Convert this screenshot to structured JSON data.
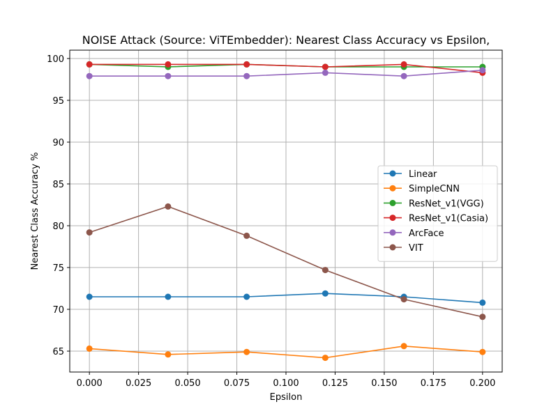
{
  "chart_data": {
    "type": "line",
    "title": "NOISE Attack (Source: ViTEmbedder): Nearest Class Accuracy vs Epsilon,",
    "xlabel": "Epsilon",
    "ylabel": "Nearest Class Accuracy %",
    "x": [
      0.0,
      0.04,
      0.08,
      0.12,
      0.16,
      0.2
    ],
    "xlim": [
      -0.01,
      0.21
    ],
    "ylim": [
      62.5,
      101.0
    ],
    "xticks": [
      0.0,
      0.025,
      0.05,
      0.075,
      0.1,
      0.125,
      0.15,
      0.175,
      0.2
    ],
    "xtick_labels": [
      "0.000",
      "0.025",
      "0.050",
      "0.075",
      "0.100",
      "0.125",
      "0.150",
      "0.175",
      "0.200"
    ],
    "yticks": [
      65,
      70,
      75,
      80,
      85,
      90,
      95,
      100
    ],
    "ytick_labels": [
      "65",
      "70",
      "75",
      "80",
      "85",
      "90",
      "95",
      "100"
    ],
    "grid": true,
    "legend_position": "center-right",
    "series": [
      {
        "name": "Linear",
        "color": "#1f77b4",
        "values": [
          71.5,
          71.5,
          71.5,
          71.9,
          71.5,
          70.8
        ]
      },
      {
        "name": "SimpleCNN",
        "color": "#ff7f0e",
        "values": [
          65.3,
          64.6,
          64.9,
          64.2,
          65.6,
          64.9
        ]
      },
      {
        "name": "ResNet_v1(VGG)",
        "color": "#2ca02c",
        "values": [
          99.3,
          99.0,
          99.3,
          99.0,
          99.0,
          99.0
        ]
      },
      {
        "name": "ResNet_v1(Casia)",
        "color": "#d62728",
        "values": [
          99.3,
          99.3,
          99.3,
          99.0,
          99.3,
          98.3
        ]
      },
      {
        "name": "ArcFace",
        "color": "#9467bd",
        "values": [
          97.9,
          97.9,
          97.9,
          98.3,
          97.9,
          98.6
        ]
      },
      {
        "name": "VIT",
        "color": "#8c564b",
        "values": [
          79.2,
          82.3,
          78.8,
          74.7,
          71.2,
          69.1
        ]
      }
    ]
  }
}
